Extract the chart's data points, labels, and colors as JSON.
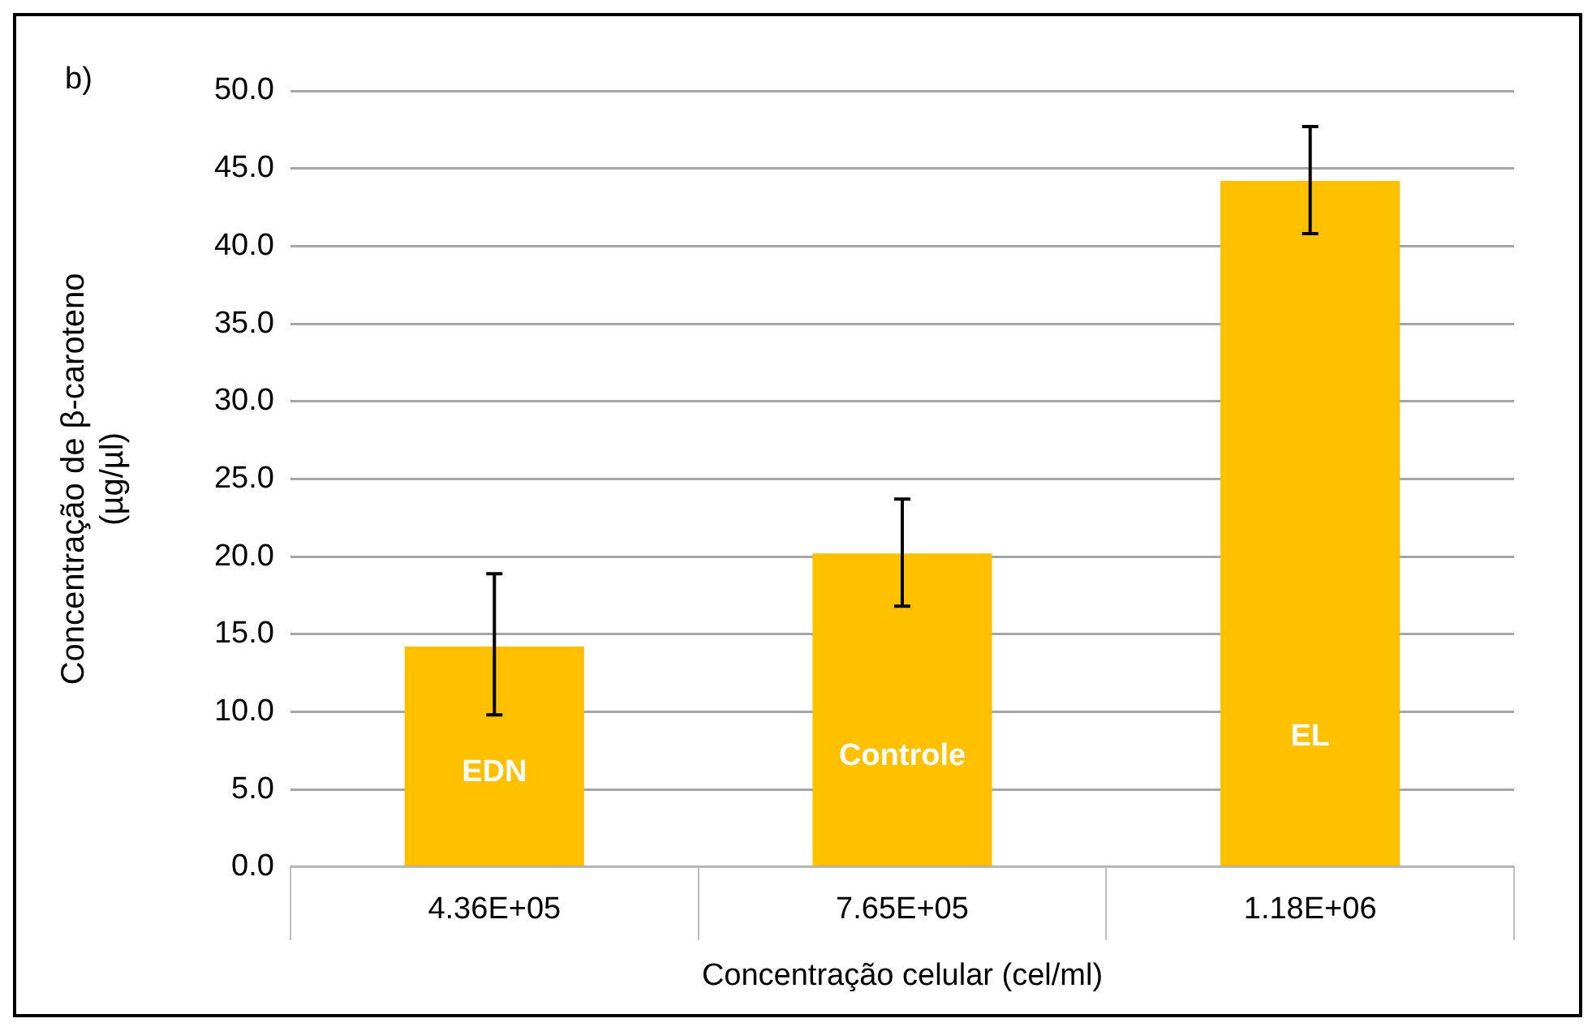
{
  "chart_data": {
    "type": "bar",
    "xlabel": "Concentração celular (cel/ml)",
    "ylabel": "Concentração de β-caroteno\n(µg/µl)",
    "categories": [
      "4.36E+05",
      "7.65E+05",
      "1.18E+06"
    ],
    "values": [
      14.2,
      20.2,
      44.2
    ],
    "color": "#ffc000",
    "errors": [
      [
        9.8,
        18.9
      ],
      [
        16.8,
        23.7
      ],
      [
        40.8,
        47.7
      ]
    ],
    "ylim": [
      0,
      50
    ],
    "yticks": [
      {
        "value": 0,
        "label": "0.0"
      },
      {
        "value": 5,
        "label": "5.0"
      },
      {
        "value": 10,
        "label": "10.0"
      },
      {
        "value": 15,
        "label": "15.0"
      },
      {
        "value": 20,
        "label": "20.0"
      },
      {
        "value": 25,
        "label": "25.0"
      },
      {
        "value": 30,
        "label": "30.0"
      },
      {
        "value": 35,
        "label": "35.0"
      },
      {
        "value": 40,
        "label": "40.0"
      },
      {
        "value": 45,
        "label": "45.0"
      },
      {
        "value": 50,
        "label": "50.0"
      }
    ],
    "grid": "y",
    "annotations": [
      "b)",
      "EDN",
      "Controle",
      "EL"
    ]
  }
}
